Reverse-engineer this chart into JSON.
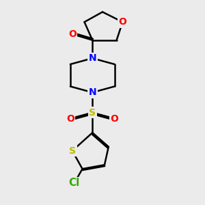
{
  "background_color": "#ebebeb",
  "bond_color": "#000000",
  "bond_width": 1.8,
  "atom_colors": {
    "O": "#ff0000",
    "N": "#0000ff",
    "S": "#bbbb00",
    "Cl": "#33aa00",
    "C": "#000000"
  },
  "font_size_atom": 10
}
